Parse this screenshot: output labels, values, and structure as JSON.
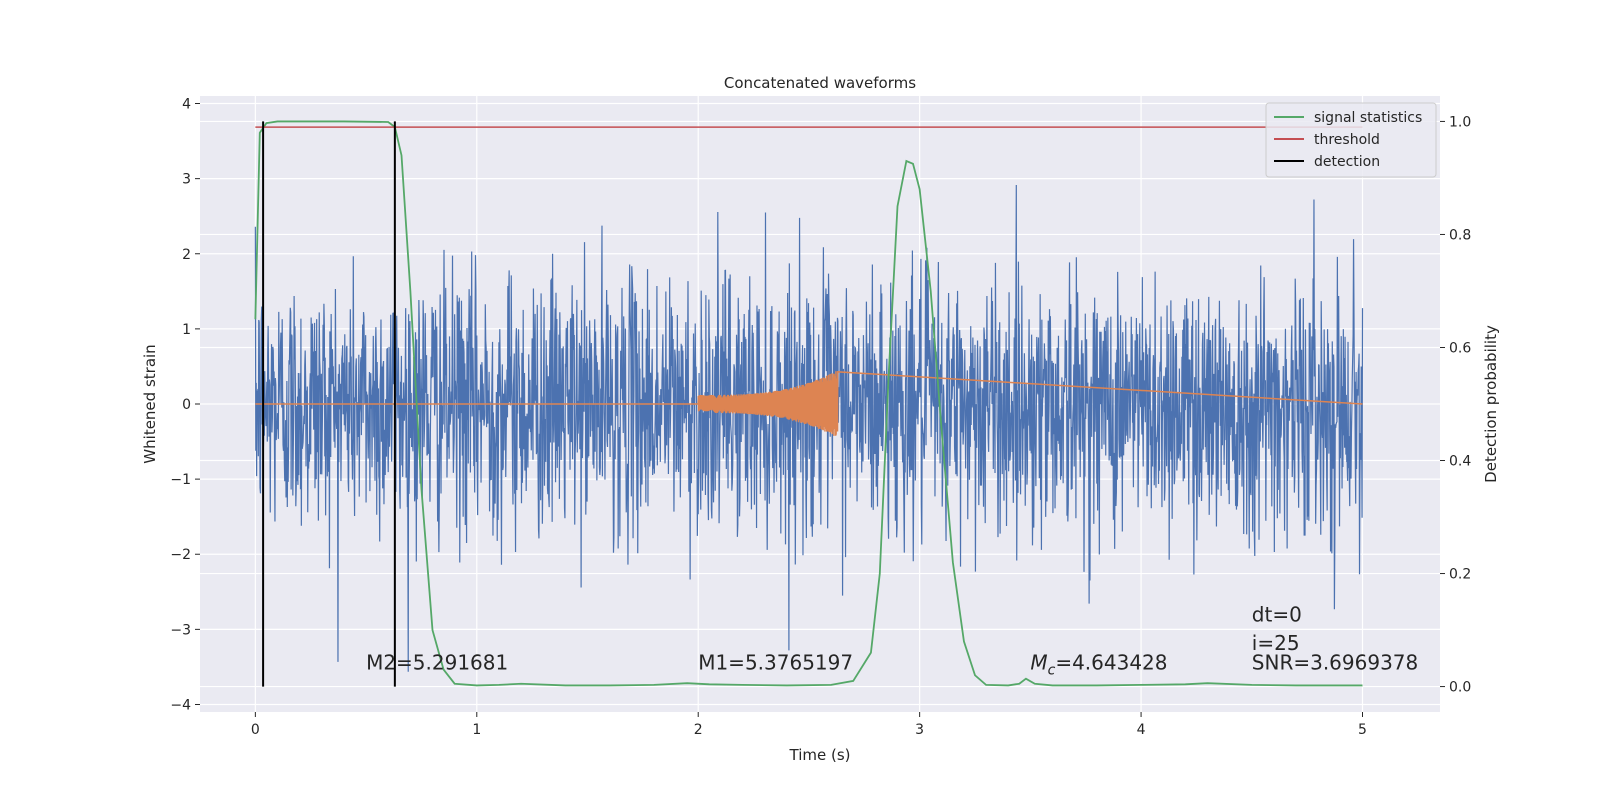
{
  "chart_data": {
    "type": "line",
    "title": "Concatenated waveforms",
    "xlabel": "Time (s)",
    "ylabel": "Whitened strain",
    "y2label": "Detection probability",
    "xlim": [
      -0.25,
      5.35
    ],
    "ylim": [
      -4.1,
      4.1
    ],
    "y2lim": [
      -0.045,
      1.045
    ],
    "x_ticks": [
      0,
      1,
      2,
      3,
      4,
      5
    ],
    "y_ticks": [
      -4,
      -3,
      -2,
      -1,
      0,
      1,
      2,
      3,
      4
    ],
    "y2_ticks": [
      0.0,
      0.2,
      0.4,
      0.6,
      0.8,
      1.0
    ],
    "x_tick_labels": [
      "0",
      "1",
      "2",
      "3",
      "4",
      "5"
    ],
    "y_tick_labels": [
      "−4",
      "−3",
      "−2",
      "−1",
      "0",
      "1",
      "2",
      "3",
      "4"
    ],
    "y2_tick_labels": [
      "0.0",
      "0.2",
      "0.4",
      "0.6",
      "0.8",
      "1.0"
    ],
    "grid": true,
    "legend_position": "top-right",
    "series": [
      {
        "name": "signal statistics",
        "axis": "right",
        "color": "#55a868",
        "x": [
          0.0,
          0.02,
          0.05,
          0.1,
          0.2,
          0.4,
          0.6,
          0.63,
          0.66,
          0.7,
          0.75,
          0.8,
          0.85,
          0.9,
          1.0,
          1.1,
          1.2,
          1.4,
          1.6,
          1.8,
          1.95,
          2.05,
          2.2,
          2.4,
          2.6,
          2.7,
          2.78,
          2.82,
          2.86,
          2.9,
          2.94,
          2.97,
          3.0,
          3.05,
          3.1,
          3.15,
          3.2,
          3.25,
          3.3,
          3.4,
          3.45,
          3.48,
          3.52,
          3.6,
          3.8,
          4.0,
          4.2,
          4.3,
          4.5,
          4.7,
          5.0
        ],
        "y": [
          0.65,
          0.98,
          0.997,
          1.0,
          1.0,
          1.0,
          0.999,
          0.99,
          0.94,
          0.7,
          0.35,
          0.1,
          0.03,
          0.005,
          0.002,
          0.003,
          0.005,
          0.002,
          0.002,
          0.003,
          0.006,
          0.004,
          0.003,
          0.002,
          0.003,
          0.01,
          0.06,
          0.2,
          0.55,
          0.85,
          0.93,
          0.925,
          0.88,
          0.7,
          0.45,
          0.22,
          0.08,
          0.02,
          0.003,
          0.002,
          0.005,
          0.014,
          0.005,
          0.002,
          0.002,
          0.003,
          0.004,
          0.006,
          0.003,
          0.002,
          0.002
        ]
      },
      {
        "name": "threshold",
        "axis": "right",
        "color": "#c44e52",
        "x": [
          0,
          5
        ],
        "y": [
          0.99,
          0.99
        ]
      },
      {
        "name": "detection",
        "axis": "right",
        "color": "#000000",
        "x": [
          0.035,
          0.63
        ],
        "y": [
          0.0,
          1.0
        ]
      },
      {
        "axis": "left",
        "color": "#4c72b0",
        "x_range": [
          0,
          5
        ],
        "amplitude_std": 0.85
      },
      {
        "axis": "left",
        "color": "#dd8452",
        "x_range": [
          2.0,
          2.63
        ],
        "amplitude_start": 0.12,
        "amplitude_end": 0.45
      }
    ],
    "annotations": [
      {
        "text": "M2=5.291681",
        "x": 0.5,
        "y": 0.03
      },
      {
        "text": "M1=5.3765197",
        "x": 2.0,
        "y": 0.03
      },
      {
        "text": "=4.643428",
        "x": 3.5,
        "y": 0.03
      },
      {
        "text": "SNR=3.6969378",
        "x": 4.5,
        "y": 0.03
      },
      {
        "text": "i=25",
        "x": 4.5,
        "y": 0.065
      },
      {
        "text": "dt=0",
        "x": 4.5,
        "y": 0.115
      }
    ],
    "mc_symbol": "M",
    "mc_subscript": "c"
  }
}
